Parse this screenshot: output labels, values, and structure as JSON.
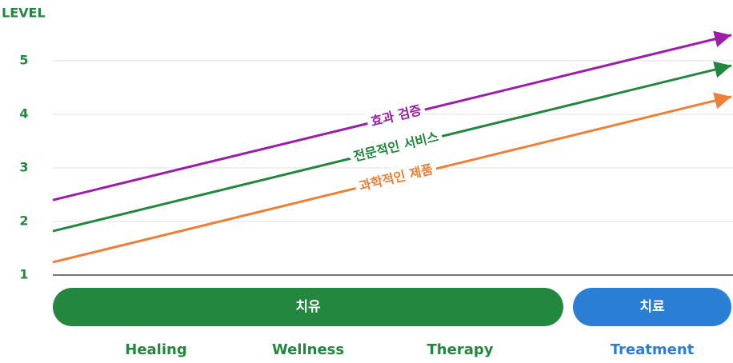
{
  "chart_data": {
    "type": "line",
    "y_label": "LEVEL",
    "categories": [
      null,
      null
    ],
    "series": [
      {
        "name": "효과 검증",
        "color": "#9b1fa8",
        "values": [
          2.4,
          5.48
        ]
      },
      {
        "name": "전문적인 서비스",
        "color": "#24873f",
        "values": [
          1.82,
          4.91
        ]
      },
      {
        "name": "과학적인 제품",
        "color": "#ee7f35",
        "values": [
          1.24,
          4.33
        ]
      }
    ],
    "ylim": [
      1,
      5.5
    ],
    "yticks": [
      1,
      2,
      3,
      4,
      5
    ],
    "grid": true,
    "axis_color": "#24873f",
    "phases": [
      {
        "label": "치유",
        "color": "#24873f",
        "stages": [
          "Healing",
          "Wellness",
          "Therapy"
        ]
      },
      {
        "label": "치료",
        "color": "#2a7fd4",
        "stages": [
          "Treatment"
        ]
      }
    ]
  }
}
